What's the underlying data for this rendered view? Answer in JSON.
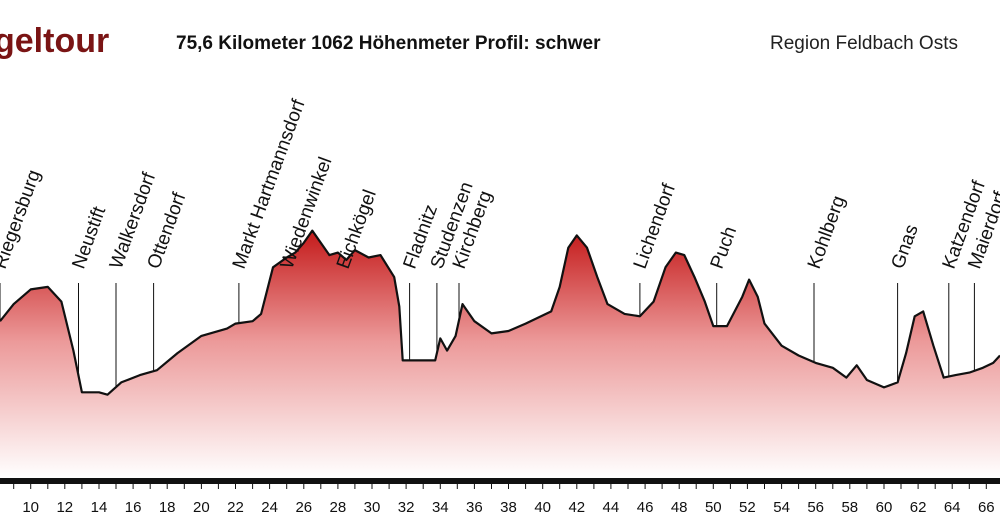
{
  "header": {
    "title": "geltour",
    "stats": "75,6 Kilometer  1062 Höhenmeter  Profil: schwer",
    "region": "Region Feldbach  Osts"
  },
  "colors": {
    "title": "#7a1414",
    "fill_top": "#c41a1a",
    "fill_mid": "#ec9a9a",
    "fill_bottom": "#ffffff",
    "line": "#111111"
  },
  "chart_data": {
    "type": "area",
    "title": "",
    "xlabel": "",
    "ylabel": "",
    "xlim": [
      8.2,
      66.8
    ],
    "x_ticks": [
      10,
      12,
      14,
      16,
      18,
      20,
      22,
      24,
      26,
      28,
      30,
      32,
      34,
      36,
      38,
      40,
      42,
      44,
      46,
      48,
      50,
      52,
      54,
      56,
      58,
      60,
      62,
      64,
      66
    ],
    "grid": false,
    "profile": [
      [
        8.2,
        3.2
      ],
      [
        9.0,
        3.55
      ],
      [
        10.0,
        3.85
      ],
      [
        11.0,
        3.9
      ],
      [
        11.8,
        3.6
      ],
      [
        12.5,
        2.6
      ],
      [
        13.0,
        1.75
      ],
      [
        14.0,
        1.75
      ],
      [
        14.5,
        1.7
      ],
      [
        15.3,
        1.95
      ],
      [
        16.4,
        2.1
      ],
      [
        17.4,
        2.2
      ],
      [
        18.6,
        2.55
      ],
      [
        20.0,
        2.9
      ],
      [
        21.5,
        3.05
      ],
      [
        22.0,
        3.15
      ],
      [
        23.0,
        3.2
      ],
      [
        23.5,
        3.35
      ],
      [
        24.2,
        4.3
      ],
      [
        25.0,
        4.5
      ],
      [
        25.5,
        4.6
      ],
      [
        26.0,
        4.8
      ],
      [
        26.5,
        5.05
      ],
      [
        26.9,
        4.85
      ],
      [
        27.5,
        4.55
      ],
      [
        28.0,
        4.6
      ],
      [
        28.5,
        4.45
      ],
      [
        29.0,
        4.65
      ],
      [
        29.8,
        4.5
      ],
      [
        30.5,
        4.55
      ],
      [
        31.3,
        4.1
      ],
      [
        31.6,
        3.5
      ],
      [
        31.8,
        2.4
      ],
      [
        33.0,
        2.4
      ],
      [
        33.7,
        2.4
      ],
      [
        34.0,
        2.85
      ],
      [
        34.4,
        2.6
      ],
      [
        34.9,
        2.9
      ],
      [
        35.3,
        3.55
      ],
      [
        36.0,
        3.2
      ],
      [
        37.0,
        2.95
      ],
      [
        38.0,
        3.0
      ],
      [
        39.0,
        3.15
      ],
      [
        40.5,
        3.4
      ],
      [
        41.0,
        3.9
      ],
      [
        41.5,
        4.7
      ],
      [
        42.0,
        4.95
      ],
      [
        42.6,
        4.7
      ],
      [
        43.2,
        4.1
      ],
      [
        43.8,
        3.55
      ],
      [
        44.8,
        3.35
      ],
      [
        45.7,
        3.3
      ],
      [
        46.5,
        3.6
      ],
      [
        47.2,
        4.3
      ],
      [
        47.8,
        4.6
      ],
      [
        48.3,
        4.55
      ],
      [
        48.9,
        4.1
      ],
      [
        49.5,
        3.6
      ],
      [
        50.0,
        3.1
      ],
      [
        50.8,
        3.1
      ],
      [
        51.7,
        3.7
      ],
      [
        52.1,
        4.05
      ],
      [
        52.6,
        3.7
      ],
      [
        53.0,
        3.15
      ],
      [
        54.0,
        2.7
      ],
      [
        55.0,
        2.5
      ],
      [
        56.0,
        2.35
      ],
      [
        57.0,
        2.25
      ],
      [
        57.8,
        2.05
      ],
      [
        58.4,
        2.3
      ],
      [
        59.0,
        2.0
      ],
      [
        60.0,
        1.85
      ],
      [
        60.8,
        1.95
      ],
      [
        61.3,
        2.55
      ],
      [
        61.8,
        3.3
      ],
      [
        62.3,
        3.4
      ],
      [
        62.9,
        2.7
      ],
      [
        63.5,
        2.05
      ],
      [
        64.2,
        2.1
      ],
      [
        65.0,
        2.15
      ],
      [
        65.8,
        2.25
      ],
      [
        66.4,
        2.35
      ],
      [
        66.8,
        2.5
      ]
    ],
    "places": [
      {
        "name": "Riegersburg",
        "km": 8.2
      },
      {
        "name": "Neustift",
        "km": 12.8
      },
      {
        "name": "Walkersdorf",
        "km": 15.0
      },
      {
        "name": "Ottendorf",
        "km": 17.2
      },
      {
        "name": "Markt Hartmannsdorf",
        "km": 22.2
      },
      {
        "name": "Wiedenwinkel",
        "km": 25.0
      },
      {
        "name": "Eichkögel",
        "km": 28.3
      },
      {
        "name": "Fladnitz",
        "km": 32.2
      },
      {
        "name": "Studenzen",
        "km": 33.8
      },
      {
        "name": "Kirchberg",
        "km": 35.1
      },
      {
        "name": "Lichendorf",
        "km": 45.7
      },
      {
        "name": "Puch",
        "km": 50.2
      },
      {
        "name": "Kohlberg",
        "km": 55.9
      },
      {
        "name": "Gnas",
        "km": 60.8
      },
      {
        "name": "Katzendorf",
        "km": 63.8
      },
      {
        "name": "Maierdorf",
        "km": 65.3
      }
    ]
  }
}
